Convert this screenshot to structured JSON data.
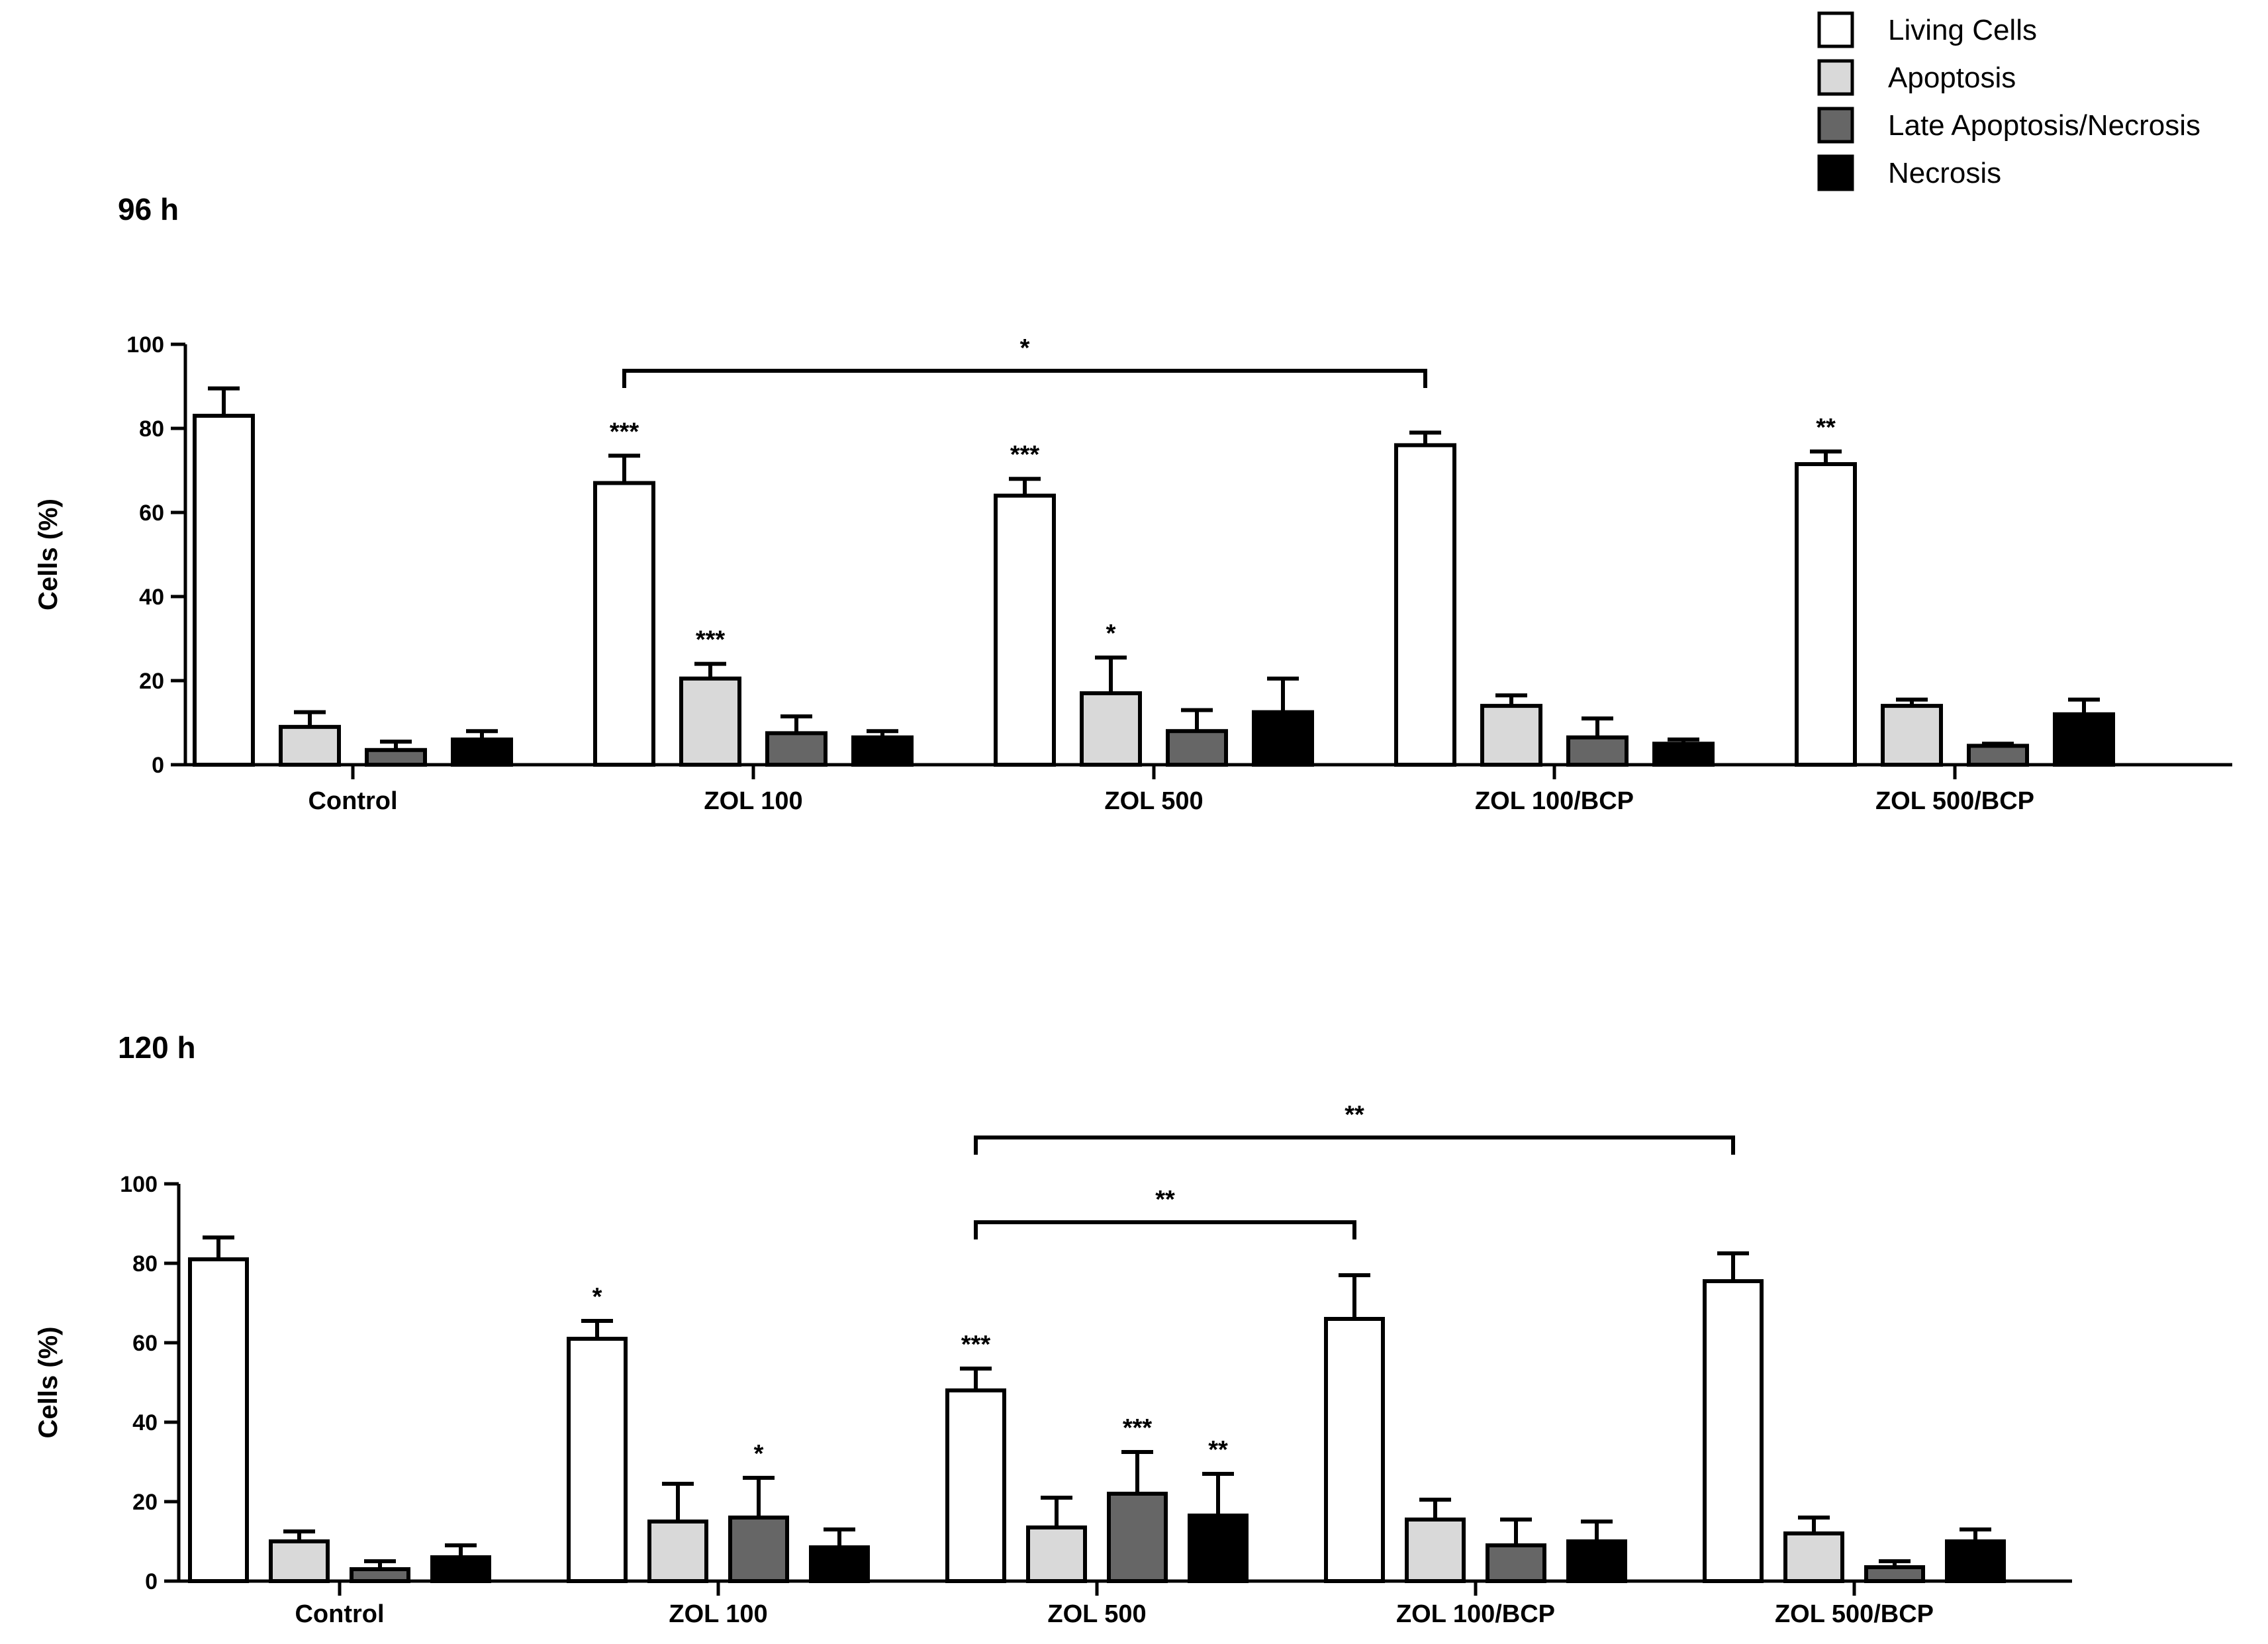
{
  "legend": {
    "items": [
      {
        "label": "Living Cells",
        "color": "#ffffff"
      },
      {
        "label": "Apoptosis",
        "color": "#d9d9d9"
      },
      {
        "label": "Late Apoptosis/Necrosis",
        "color": "#666666"
      },
      {
        "label": "Necrosis",
        "color": "#000000"
      }
    ]
  },
  "chart_data": [
    {
      "type": "bar",
      "title": "96 h",
      "ylabel": "Cells (%)",
      "xlabel": "",
      "ylim": [
        0,
        100
      ],
      "yticks": [
        "0",
        "20",
        "40",
        "60",
        "80",
        "100"
      ],
      "categories": [
        "Control",
        "ZOL 100",
        "ZOL 500",
        "ZOL 100/BCP",
        "ZOL 500/BCP"
      ],
      "series": [
        {
          "name": "Living Cells",
          "color": "#ffffff",
          "values": [
            83,
            67,
            64,
            76,
            71.5
          ],
          "errors": [
            6.5,
            6.5,
            4,
            3,
            3
          ],
          "significance": [
            "",
            "***",
            "***",
            "",
            "**"
          ]
        },
        {
          "name": "Apoptosis",
          "color": "#d9d9d9",
          "values": [
            9,
            20.5,
            17,
            14,
            14
          ],
          "errors": [
            3.5,
            3.5,
            8.5,
            2.5,
            1.5
          ],
          "significance": [
            "",
            "***",
            "*",
            "",
            ""
          ]
        },
        {
          "name": "Late Apoptosis/Necrosis",
          "color": "#666666",
          "values": [
            3.5,
            7.5,
            8,
            6.5,
            4.5
          ],
          "errors": [
            2,
            4,
            5,
            4.5,
            0.5
          ],
          "significance": [
            "",
            "",
            "",
            "",
            ""
          ]
        },
        {
          "name": "Necrosis",
          "color": "#000000",
          "values": [
            6,
            6.5,
            12.5,
            5,
            12
          ],
          "errors": [
            2,
            1.5,
            8,
            1,
            3.5
          ],
          "significance": [
            "",
            "",
            "",
            "",
            ""
          ]
        }
      ],
      "brackets": [
        {
          "from": "ZOL 100",
          "to": "ZOL 100/BCP",
          "label": "*"
        }
      ]
    },
    {
      "type": "bar",
      "title": "120 h",
      "ylabel": "Cells (%)",
      "xlabel": "",
      "ylim": [
        0,
        100
      ],
      "yticks": [
        "0",
        "20",
        "40",
        "60",
        "80",
        "100"
      ],
      "categories": [
        "Control",
        "ZOL 100",
        "ZOL 500",
        "ZOL 100/BCP",
        "ZOL 500/BCP"
      ],
      "series": [
        {
          "name": "Living Cells",
          "color": "#ffffff",
          "values": [
            81,
            61,
            48,
            66,
            75.5
          ],
          "errors": [
            5.5,
            4.5,
            5.5,
            11,
            7
          ],
          "significance": [
            "",
            "*",
            "***",
            "",
            ""
          ]
        },
        {
          "name": "Apoptosis",
          "color": "#d9d9d9",
          "values": [
            10,
            15,
            13.5,
            15.5,
            12
          ],
          "errors": [
            2.5,
            9.5,
            7.5,
            5,
            4
          ],
          "significance": [
            "",
            "",
            "",
            "",
            ""
          ]
        },
        {
          "name": "Late Apoptosis/Necrosis",
          "color": "#666666",
          "values": [
            3,
            16,
            22,
            9,
            3.5
          ],
          "errors": [
            2,
            10,
            10.5,
            6.5,
            1.5
          ],
          "significance": [
            "",
            "*",
            "***",
            "",
            ""
          ]
        },
        {
          "name": "Necrosis",
          "color": "#000000",
          "values": [
            6,
            8.5,
            16.5,
            10,
            10
          ],
          "errors": [
            3,
            4.5,
            10.5,
            5,
            3
          ],
          "significance": [
            "",
            "",
            "**",
            "",
            ""
          ]
        }
      ],
      "brackets": [
        {
          "from": "ZOL 500",
          "to": "ZOL 500/BCP",
          "label": "**"
        },
        {
          "from": "ZOL 500",
          "to": "ZOL 100/BCP",
          "label": "**"
        }
      ]
    }
  ]
}
